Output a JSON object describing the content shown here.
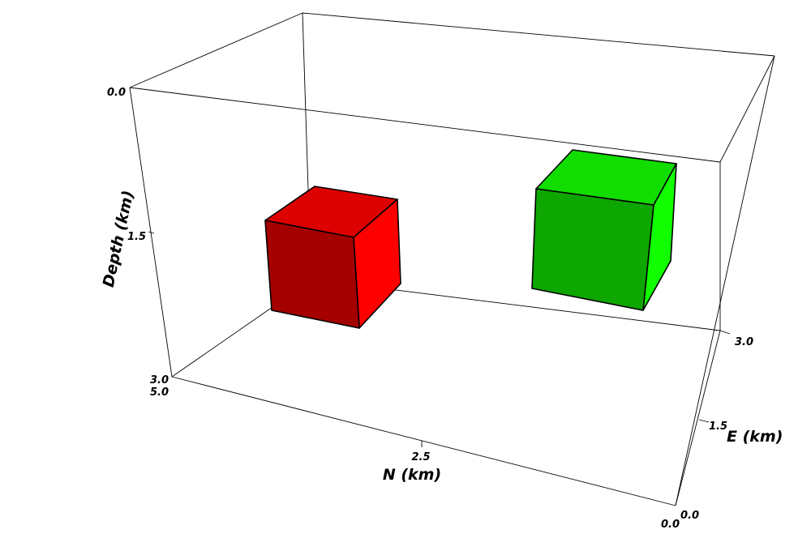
{
  "axes": {
    "depth": {
      "title": "Depth (km)",
      "ticks": [
        "0.0",
        "1.5",
        "3.0"
      ]
    },
    "north": {
      "title": "N (km)",
      "ticks": [
        "5.0",
        "2.5",
        "0.0"
      ]
    },
    "east": {
      "title": "E (km)",
      "ticks": [
        "3.0",
        "1.5",
        "0.0"
      ]
    }
  },
  "objects": [
    {
      "name": "red-block",
      "colors": {
        "top": "#dd0000",
        "front": "#a50000",
        "side": "#ff0000"
      }
    },
    {
      "name": "green-block",
      "colors": {
        "top": "#11dd00",
        "front": "#0ea600",
        "side": "#11ff00"
      }
    }
  ]
}
